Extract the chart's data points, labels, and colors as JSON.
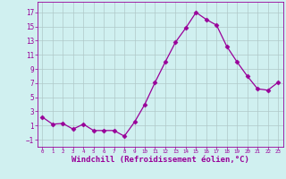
{
  "x": [
    0,
    1,
    2,
    3,
    4,
    5,
    6,
    7,
    8,
    9,
    10,
    11,
    12,
    13,
    14,
    15,
    16,
    17,
    18,
    19,
    20,
    21,
    22,
    23
  ],
  "y": [
    2.2,
    1.2,
    1.3,
    0.5,
    1.2,
    0.3,
    0.3,
    0.3,
    -0.5,
    1.5,
    4.0,
    7.1,
    10.0,
    12.8,
    14.8,
    17.0,
    16.0,
    15.2,
    12.2,
    10.0,
    8.0,
    6.2,
    6.0,
    7.1
  ],
  "line_color": "#990099",
  "marker": "D",
  "marker_size": 2.5,
  "bg_color": "#d0f0f0",
  "grid_color": "#b0c8c8",
  "xlabel": "Windchill (Refroidissement éolien,°C)",
  "xlabel_fontsize": 6.5,
  "yticks": [
    -1,
    1,
    3,
    5,
    7,
    9,
    11,
    13,
    15,
    17
  ],
  "xticks": [
    0,
    1,
    2,
    3,
    4,
    5,
    6,
    7,
    8,
    9,
    10,
    11,
    12,
    13,
    14,
    15,
    16,
    17,
    18,
    19,
    20,
    21,
    22,
    23
  ],
  "ylim": [
    -2.0,
    18.5
  ],
  "xlim": [
    -0.5,
    23.5
  ]
}
